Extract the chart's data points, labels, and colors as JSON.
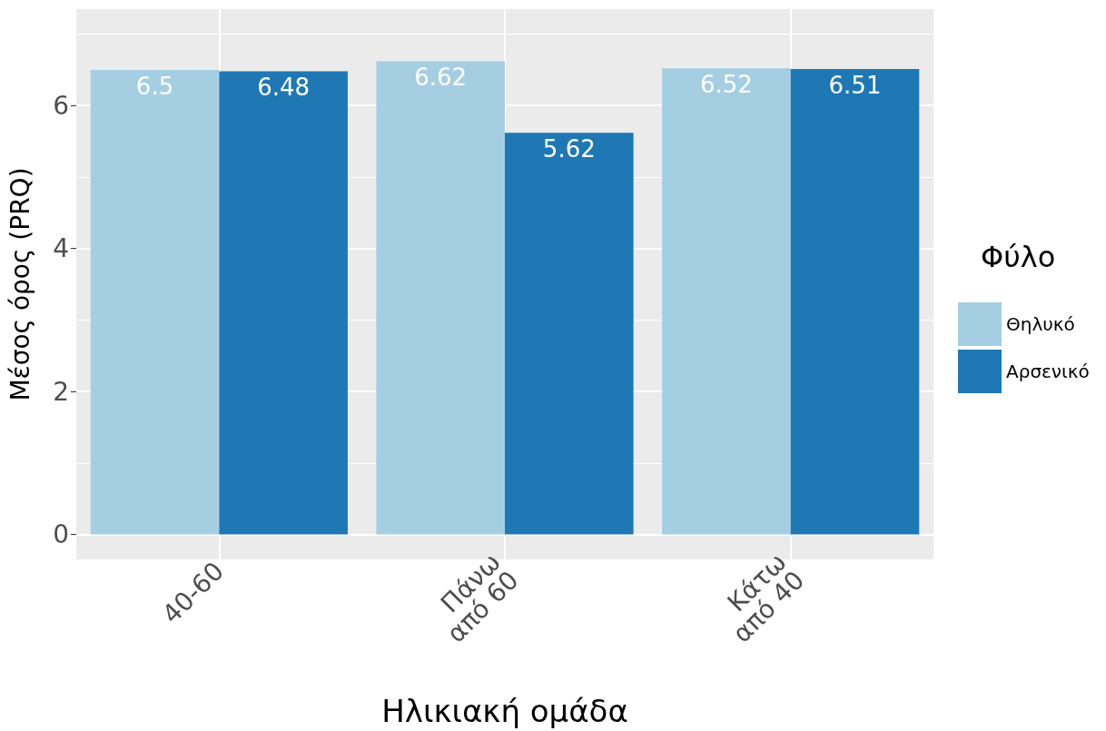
{
  "chart_data": {
    "type": "bar",
    "xlabel": "Ηλικιακή ομάδα",
    "ylabel": "Μέσος όρος (PRQ)",
    "legend_title": "Φύλο",
    "categories": [
      "40-60",
      "Πάνω από 60",
      "Κάτω από 40"
    ],
    "series": [
      {
        "name": "Θηλυκό",
        "color": "#a6cee3",
        "values": [
          6.5,
          6.62,
          6.52
        ]
      },
      {
        "name": "Αρσενικό",
        "color": "#1f78b4",
        "values": [
          6.48,
          5.62,
          6.51
        ]
      }
    ],
    "ylim": [
      -0.35,
      7.35
    ],
    "yticks": [
      0,
      2,
      4,
      6
    ],
    "grid": true,
    "legend": "right",
    "data_labels": true
  }
}
